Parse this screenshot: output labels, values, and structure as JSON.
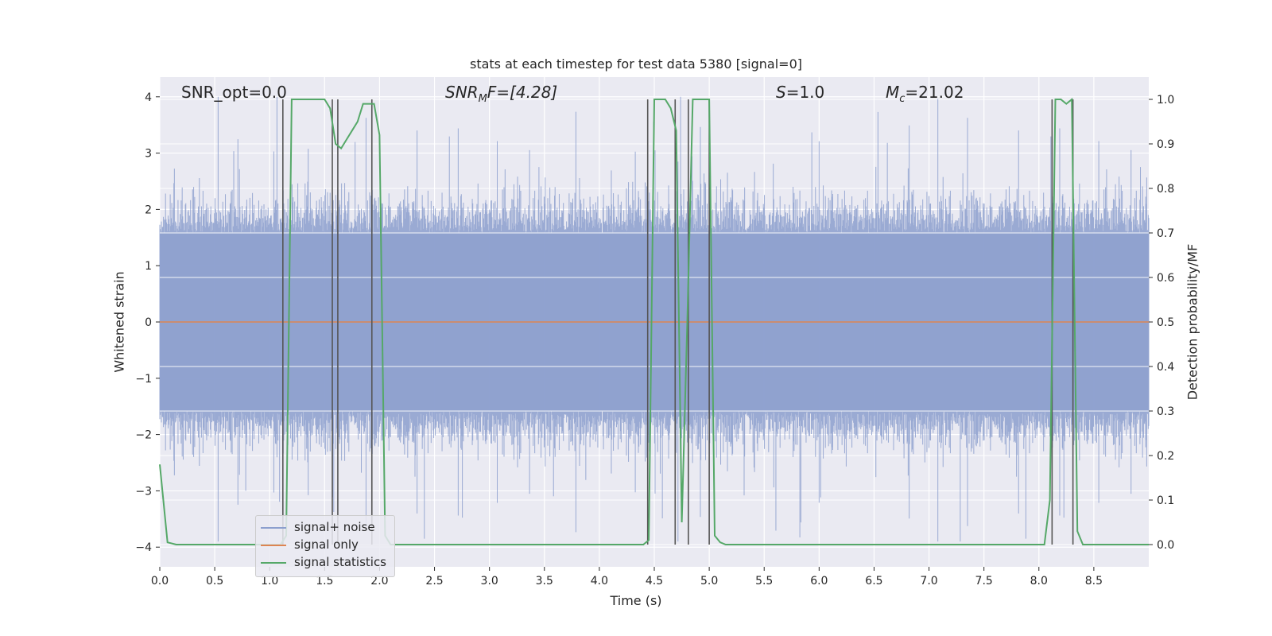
{
  "chart_data": {
    "type": "line",
    "title": "stats at each timestep for test data 5380 [signal=0]",
    "xlabel": "Time (s)",
    "ylabel": "Whitened strain",
    "ylabel_right": "Detection probability/MF",
    "xlim": [
      0.0,
      9.0
    ],
    "ylim": [
      -4.35,
      4.35
    ],
    "ylim_right": [
      -0.05,
      1.05
    ],
    "x_ticks": [
      "0.0",
      "0.5",
      "1.0",
      "1.5",
      "2.0",
      "2.5",
      "3.0",
      "3.5",
      "4.0",
      "4.5",
      "5.0",
      "5.5",
      "6.0",
      "6.5",
      "7.0",
      "7.5",
      "8.0",
      "8.5"
    ],
    "y_ticks": [
      "4",
      "3",
      "2",
      "1",
      "0",
      "−1",
      "−2",
      "−3",
      "−4"
    ],
    "y_ticks_right": [
      "1.0",
      "0.9",
      "0.8",
      "0.7",
      "0.6",
      "0.5",
      "0.4",
      "0.3",
      "0.2",
      "0.1",
      "0.0"
    ],
    "grid": true,
    "legend_position": "lower-left",
    "annotations": {
      "snr_opt": "SNR_opt=0.0",
      "snr_mf_base": "SNR",
      "snr_mf_sub": "M",
      "snr_mf_rest": "F=[4.28]",
      "s_symbol": "S",
      "s_value": "=1.0",
      "mc_symbol": "M",
      "mc_sub": "c",
      "mc_value": "=21.02"
    },
    "series": [
      {
        "name": "signal+ noise",
        "color": "#8c9fce",
        "description_kind": "noise",
        "envelope_upper_approx": 2.2,
        "envelope_lower_approx": -2.2,
        "peak_range": [
          -3.9,
          4.0
        ]
      },
      {
        "name": "signal only",
        "color": "#dd8452",
        "x": [
          0.0,
          9.0
        ],
        "y": [
          0.0,
          0.0
        ]
      },
      {
        "name": "signal statistics",
        "color": "#55a868",
        "axis": "right",
        "x": [
          0.0,
          0.07,
          0.15,
          1.1,
          1.15,
          1.2,
          1.5,
          1.55,
          1.6,
          1.65,
          1.7,
          1.75,
          1.8,
          1.85,
          1.9,
          1.95,
          2.0,
          2.05,
          2.1,
          2.15,
          4.4,
          4.45,
          4.5,
          4.55,
          4.6,
          4.65,
          4.7,
          4.75,
          4.8,
          4.85,
          4.9,
          5.0,
          5.05,
          5.1,
          5.15,
          5.3,
          8.05,
          8.1,
          8.15,
          8.2,
          8.25,
          8.3,
          8.35,
          8.4,
          9.0
        ],
        "y": [
          0.18,
          0.005,
          0.0,
          0.0,
          0.02,
          1.0,
          1.0,
          0.98,
          0.9,
          0.89,
          0.91,
          0.93,
          0.95,
          0.99,
          0.99,
          0.99,
          0.92,
          0.02,
          0.0,
          0.0,
          0.0,
          0.01,
          1.0,
          1.0,
          1.0,
          0.98,
          0.93,
          0.05,
          0.5,
          1.0,
          1.0,
          1.0,
          0.02,
          0.005,
          0.0,
          0.0,
          0.0,
          0.1,
          1.0,
          1.0,
          0.99,
          1.0,
          0.03,
          0.0,
          0.0
        ]
      }
    ],
    "vertical_markers_x": [
      1.12,
      1.57,
      1.62,
      1.93,
      4.44,
      4.69,
      4.81,
      5.0,
      8.12,
      8.31
    ]
  }
}
